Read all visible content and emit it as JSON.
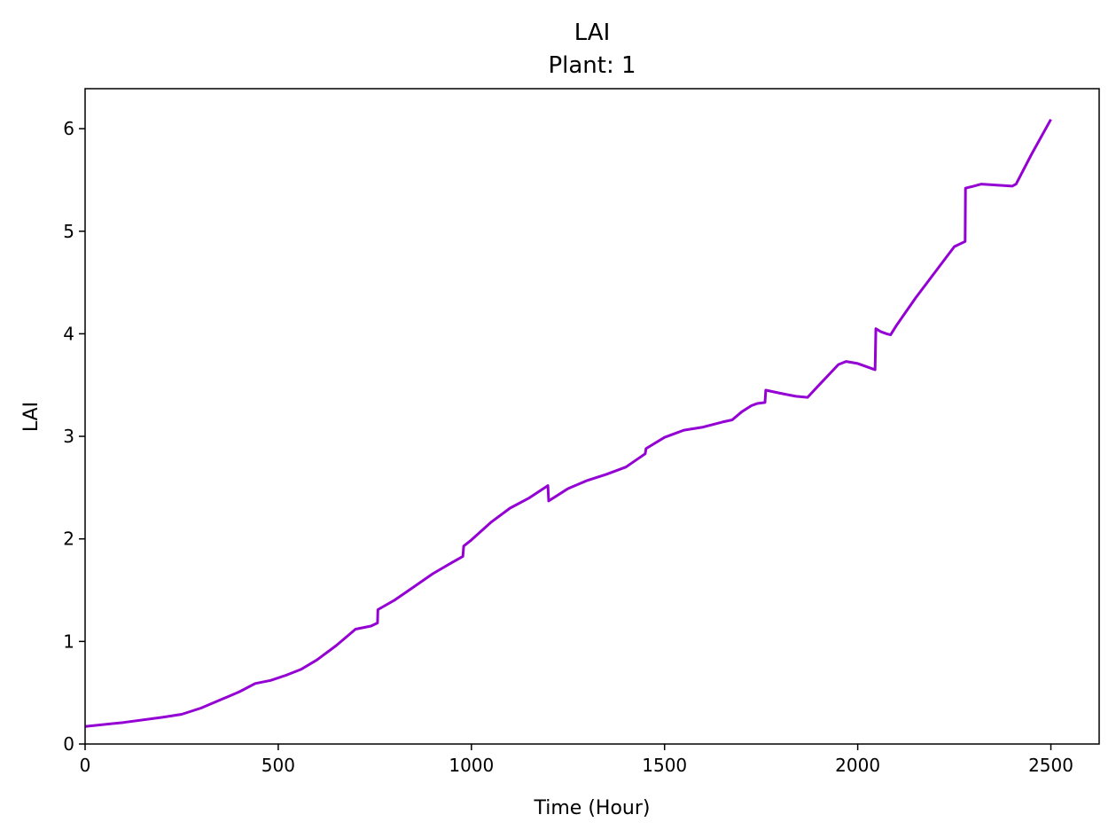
{
  "chart_data": {
    "type": "line",
    "title": "LAI",
    "subtitle": "Plant: 1",
    "xlabel": "Time (Hour)",
    "ylabel": "LAI",
    "xlim": [
      0,
      2625
    ],
    "ylim": [
      0,
      6.39
    ],
    "xticks": [
      0,
      500,
      1000,
      1500,
      2000,
      2500
    ],
    "yticks": [
      0,
      1,
      2,
      3,
      4,
      5,
      6
    ],
    "grid": false,
    "line_color": "#9400d3",
    "series": [
      {
        "x": [
          0,
          100,
          200,
          250,
          300,
          350,
          400,
          440,
          480,
          520,
          560,
          600,
          650,
          700,
          740,
          757,
          758,
          800,
          850,
          900,
          950,
          978,
          980,
          1000,
          1050,
          1100,
          1150,
          1198,
          1200,
          1250,
          1300,
          1350,
          1400,
          1450,
          1452,
          1500,
          1550,
          1600,
          1650,
          1675,
          1700,
          1725,
          1740,
          1760,
          1762,
          1800,
          1840,
          1870,
          1900,
          1950,
          1970,
          2000,
          2045,
          2047,
          2060,
          2075,
          2085,
          2100,
          2150,
          2200,
          2250,
          2278,
          2279,
          2300,
          2320,
          2360,
          2400,
          2410,
          2450,
          2500
        ],
        "y": [
          0.17,
          0.21,
          0.26,
          0.29,
          0.35,
          0.43,
          0.51,
          0.59,
          0.62,
          0.67,
          0.73,
          0.82,
          0.96,
          1.12,
          1.15,
          1.18,
          1.31,
          1.4,
          1.53,
          1.66,
          1.77,
          1.83,
          1.93,
          1.99,
          2.16,
          2.3,
          2.4,
          2.52,
          2.37,
          2.49,
          2.57,
          2.63,
          2.7,
          2.83,
          2.88,
          2.99,
          3.06,
          3.09,
          3.14,
          3.16,
          3.24,
          3.3,
          3.32,
          3.33,
          3.45,
          3.42,
          3.39,
          3.38,
          3.5,
          3.7,
          3.73,
          3.71,
          3.65,
          4.05,
          4.02,
          4.0,
          3.99,
          4.08,
          4.35,
          4.6,
          4.85,
          4.9,
          5.42,
          5.44,
          5.46,
          5.45,
          5.44,
          5.46,
          5.75,
          6.09
        ]
      }
    ]
  }
}
